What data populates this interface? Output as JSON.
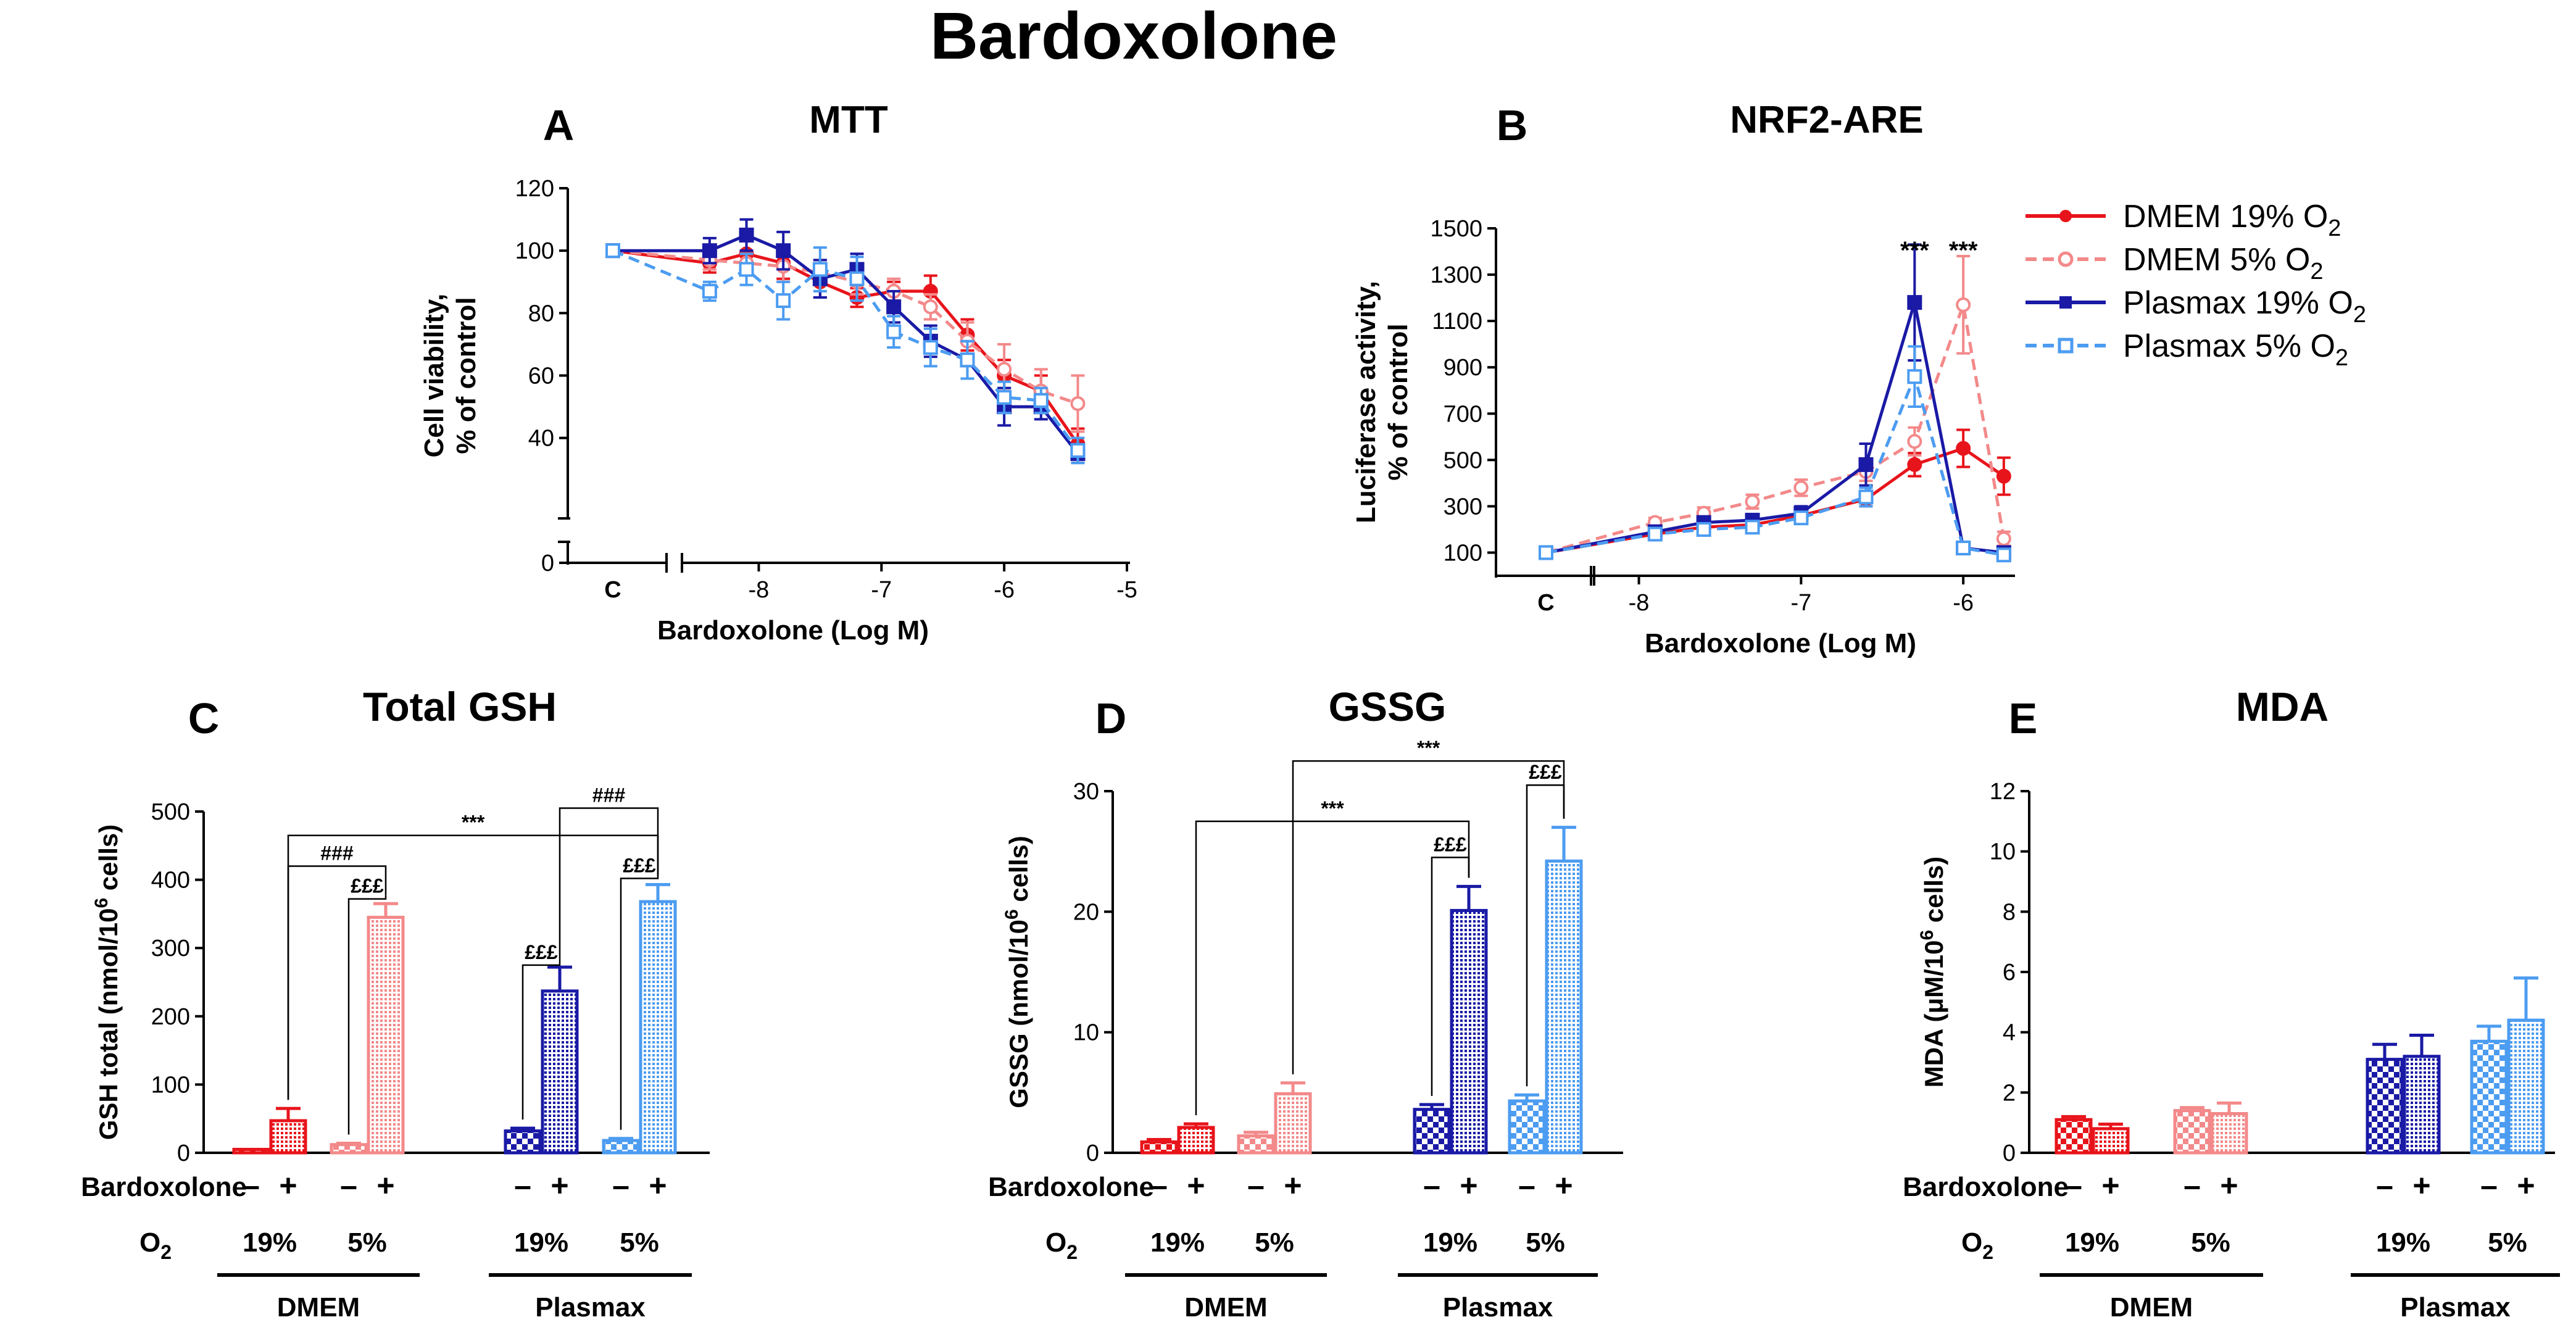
{
  "figure": {
    "title": "Bardoxolone",
    "bardoxolone_label": "Bardoxolone",
    "o2_label": "O",
    "o2_sub": "2",
    "minus": "–",
    "plus": "+",
    "o2_19": "19%",
    "o2_5": "5%",
    "media": [
      "DMEM",
      "Plasmax"
    ]
  },
  "colors": {
    "dmem19": "#e8141b",
    "dmem5": "#f3898a",
    "plasmax19": "#1a1aa6",
    "plasmax5": "#4c9cf1"
  },
  "legend": {
    "items": [
      {
        "prefix": "DMEM 19% O",
        "sub": "2"
      },
      {
        "prefix": "DMEM 5% O",
        "sub": "2"
      },
      {
        "prefix": "Plasmax 19% O",
        "sub": "2"
      },
      {
        "prefix": "Plasmax 5% O",
        "sub": "2"
      }
    ]
  },
  "chart_data": [
    {
      "panel": "A",
      "type": "line",
      "title": "MTT",
      "ylabel_lines": [
        "Cell viability,",
        "% of control"
      ],
      "xlabel": "Bardoxolone (Log M)",
      "control_label": "C",
      "ylim": [
        0,
        120
      ],
      "xlim": [
        -8.5,
        -5
      ],
      "yticks": [
        {
          "v": 0,
          "l": "0"
        },
        {
          "v": 40,
          "l": "40"
        },
        {
          "v": 60,
          "l": "60"
        },
        {
          "v": 80,
          "l": "80"
        },
        {
          "v": 100,
          "l": "100"
        },
        {
          "v": 120,
          "l": "120"
        }
      ],
      "xticks": [
        {
          "v": -8,
          "l": "-8"
        },
        {
          "v": -7,
          "l": "-7"
        },
        {
          "v": -6,
          "l": "-6"
        },
        {
          "v": -5,
          "l": "-5"
        }
      ],
      "x": [
        -8.4,
        -8.1,
        -7.8,
        -7.5,
        -7.2,
        -6.9,
        -6.6,
        -6.3,
        -6.0,
        -5.7,
        -5.4
      ],
      "series": [
        {
          "name": "DMEM 19% O2",
          "control": 100,
          "values": [
            96,
            99,
            96,
            90,
            85,
            87,
            87,
            73,
            60,
            55,
            38
          ],
          "err": [
            3,
            4,
            5,
            5,
            3,
            3,
            5,
            5,
            5,
            5,
            5
          ]
        },
        {
          "name": "DMEM 5% O2",
          "control": 100,
          "values": [
            97,
            96,
            95,
            93,
            90,
            87,
            82,
            71,
            62,
            55,
            51
          ],
          "err": [
            3,
            3,
            5,
            4,
            4,
            4,
            4,
            6,
            8,
            7,
            9
          ]
        },
        {
          "name": "Plasmax 19% O2",
          "control": 100,
          "values": [
            100,
            105,
            100,
            91,
            94,
            82,
            71,
            65,
            50,
            50,
            35
          ],
          "err": [
            4,
            5,
            6,
            6,
            5,
            5,
            5,
            6,
            6,
            4,
            3
          ]
        },
        {
          "name": "Plasmax 5% O2",
          "control": 100,
          "values": [
            87,
            94,
            84,
            94,
            91,
            74,
            69,
            65,
            53,
            52,
            36
          ],
          "err": [
            3,
            5,
            6,
            7,
            7,
            5,
            6,
            6,
            5,
            4,
            4
          ]
        }
      ]
    },
    {
      "panel": "B",
      "type": "line",
      "title": "NRF2-ARE",
      "ylabel_lines": [
        "Luciferase activity,",
        "% of control"
      ],
      "xlabel": "Bardoxolone (Log M)",
      "control_label": "C",
      "ylim": [
        0,
        1500
      ],
      "xlim": [
        -8.2,
        -5.7
      ],
      "yticks": [
        {
          "v": 100,
          "l": "100"
        },
        {
          "v": 300,
          "l": "300"
        },
        {
          "v": 500,
          "l": "500"
        },
        {
          "v": 700,
          "l": "700"
        },
        {
          "v": 900,
          "l": "900"
        },
        {
          "v": 1100,
          "l": "1100"
        },
        {
          "v": 1300,
          "l": "1300"
        },
        {
          "v": 1500,
          "l": "1500"
        }
      ],
      "xticks": [
        {
          "v": -8,
          "l": "-8"
        },
        {
          "v": -7,
          "l": "-7"
        },
        {
          "v": -6,
          "l": "-6"
        }
      ],
      "x": [
        -7.9,
        -7.6,
        -7.3,
        -7.0,
        -6.6,
        -6.3,
        -6.0,
        -5.75
      ],
      "annotations": [
        {
          "x": -6.3,
          "y": 1450,
          "text": "***"
        },
        {
          "x": -6.0,
          "y": 1450,
          "text": "***"
        }
      ],
      "series": [
        {
          "name": "DMEM 19% O2",
          "control": 100,
          "values": [
            180,
            210,
            220,
            260,
            330,
            480,
            550,
            430
          ],
          "err": [
            15,
            20,
            20,
            25,
            30,
            50,
            80,
            80
          ]
        },
        {
          "name": "DMEM 5% O2",
          "control": 100,
          "values": [
            230,
            270,
            320,
            380,
            450,
            580,
            1170,
            160
          ],
          "err": [
            20,
            25,
            30,
            35,
            40,
            60,
            210,
            30
          ]
        },
        {
          "name": "Plasmax 19% O2",
          "control": 100,
          "values": [
            190,
            230,
            240,
            270,
            480,
            1180,
            120,
            100
          ],
          "err": [
            20,
            25,
            25,
            30,
            90,
            250,
            20,
            10
          ]
        },
        {
          "name": "Plasmax 5% O2",
          "control": 100,
          "values": [
            180,
            200,
            210,
            250,
            340,
            860,
            120,
            90
          ],
          "err": [
            15,
            20,
            20,
            25,
            40,
            130,
            15,
            10
          ]
        }
      ]
    },
    {
      "panel": "C",
      "type": "bar",
      "title": "Total GSH",
      "ylabel": "GSH total (nmol/10",
      "ylabel_sup": "6",
      "ylabel_end": " cells)",
      "ylim": [
        0,
        500
      ],
      "yticks": [
        {
          "v": 0,
          "l": "0"
        },
        {
          "v": 100,
          "l": "100"
        },
        {
          "v": 200,
          "l": "200"
        },
        {
          "v": 300,
          "l": "300"
        },
        {
          "v": 400,
          "l": "400"
        },
        {
          "v": 500,
          "l": "500"
        }
      ],
      "groups": [
        {
          "values": [
            5,
            47
          ],
          "err": [
            0,
            18
          ]
        },
        {
          "values": [
            12,
            345
          ],
          "err": [
            2,
            20
          ]
        },
        {
          "values": [
            32,
            237
          ],
          "err": [
            4,
            35
          ]
        },
        {
          "values": [
            18,
            368
          ],
          "err": [
            3,
            25
          ]
        }
      ],
      "brackets": [
        {
          "from": [
            0,
            1
          ],
          "to": [
            3,
            1
          ],
          "y": 465,
          "label": "***"
        },
        {
          "from": [
            0,
            1
          ],
          "to": [
            1,
            1
          ],
          "y": 420,
          "label": "###"
        },
        {
          "from": [
            1,
            0
          ],
          "to": [
            1,
            1
          ],
          "y": 372,
          "label": "£££"
        },
        {
          "from": [
            2,
            1
          ],
          "to": [
            3,
            1
          ],
          "y": 505,
          "label": "###"
        },
        {
          "from": [
            2,
            0
          ],
          "to": [
            2,
            1
          ],
          "y": 275,
          "label": "£££"
        },
        {
          "from": [
            3,
            0
          ],
          "to": [
            3,
            1
          ],
          "y": 402,
          "label": "£££"
        }
      ]
    },
    {
      "panel": "D",
      "type": "bar",
      "title": "GSSG",
      "ylabel": "GSSG (nmol/10",
      "ylabel_sup": "6",
      "ylabel_end": " cells)",
      "ylim": [
        0,
        30
      ],
      "yticks": [
        {
          "v": 0,
          "l": "0"
        },
        {
          "v": 10,
          "l": "10"
        },
        {
          "v": 20,
          "l": "20"
        },
        {
          "v": 30,
          "l": "30"
        }
      ],
      "groups": [
        {
          "values": [
            0.9,
            2.1
          ],
          "err": [
            0.2,
            0.3
          ]
        },
        {
          "values": [
            1.4,
            4.9
          ],
          "err": [
            0.3,
            0.9
          ]
        },
        {
          "values": [
            3.6,
            20.1
          ],
          "err": [
            0.4,
            2.0
          ]
        },
        {
          "values": [
            4.3,
            24.2
          ],
          "err": [
            0.5,
            2.8
          ]
        }
      ],
      "brackets": [
        {
          "from": [
            0,
            1
          ],
          "to": [
            2,
            1
          ],
          "y": 27.5,
          "label": "***"
        },
        {
          "from": [
            1,
            1
          ],
          "to": [
            3,
            1
          ],
          "y": 32.5,
          "label": "***"
        },
        {
          "from": [
            2,
            0
          ],
          "to": [
            2,
            1
          ],
          "y": 24.5,
          "label": "£££"
        },
        {
          "from": [
            3,
            0
          ],
          "to": [
            3,
            1
          ],
          "y": 30.5,
          "label": "£££"
        }
      ]
    },
    {
      "panel": "E",
      "type": "bar",
      "title": "MDA",
      "ylabel": "MDA (μM/10",
      "ylabel_sup": "6",
      "ylabel_end": " cells)",
      "ylim": [
        0,
        12
      ],
      "yticks": [
        {
          "v": 0,
          "l": "0"
        },
        {
          "v": 2,
          "l": "2"
        },
        {
          "v": 4,
          "l": "4"
        },
        {
          "v": 6,
          "l": "6"
        },
        {
          "v": 8,
          "l": "8"
        },
        {
          "v": 10,
          "l": "10"
        },
        {
          "v": 12,
          "l": "12"
        }
      ],
      "groups": [
        {
          "values": [
            1.1,
            0.8
          ],
          "err": [
            0.1,
            0.15
          ]
        },
        {
          "values": [
            1.4,
            1.3
          ],
          "err": [
            0.1,
            0.35
          ]
        },
        {
          "values": [
            3.1,
            3.2
          ],
          "err": [
            0.5,
            0.7
          ]
        },
        {
          "values": [
            3.7,
            4.4
          ],
          "err": [
            0.5,
            1.4
          ]
        }
      ],
      "brackets": []
    }
  ]
}
